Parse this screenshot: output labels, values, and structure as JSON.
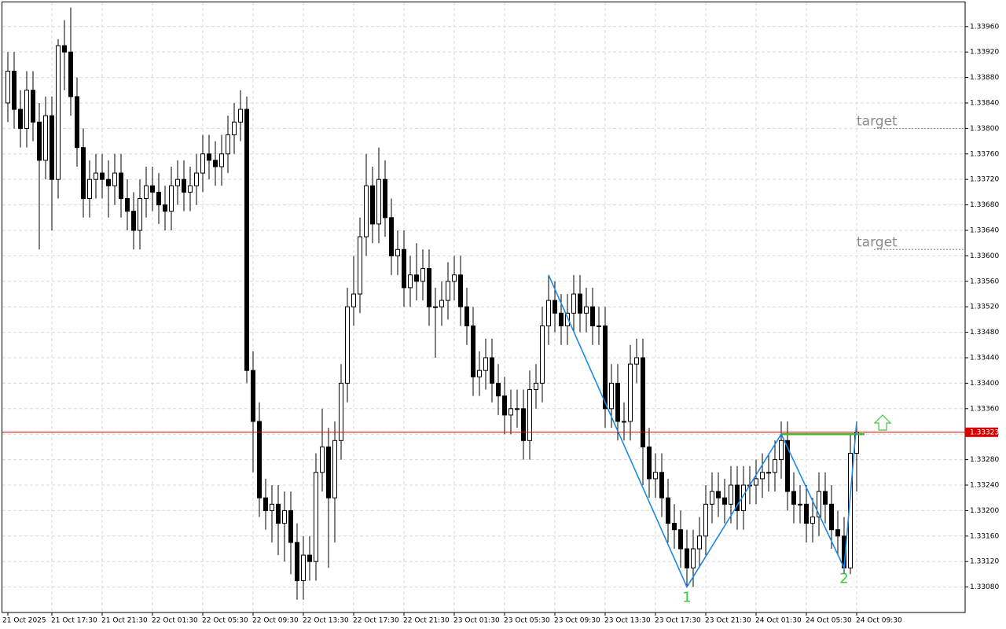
{
  "chart_data": {
    "type": "candlestick",
    "categories": [
      "21 Oct 2025",
      null,
      null,
      null,
      null,
      null,
      null,
      "21 Oct 17:30",
      null,
      null,
      null,
      null,
      null,
      null,
      null,
      "21 Oct 21:30",
      null,
      null,
      null,
      null,
      null,
      null,
      null,
      "22 Oct 01:30",
      null,
      null,
      null,
      null,
      null,
      null,
      null,
      "22 Oct 05:30",
      null,
      null,
      null,
      null,
      null,
      null,
      null,
      "22 Oct 09:30",
      null,
      null,
      null,
      null,
      null,
      null,
      null,
      "22 Oct 13:30",
      null,
      null,
      null,
      null,
      null,
      null,
      null,
      "22 Oct 17:30",
      null,
      null,
      null,
      null,
      null,
      null,
      null,
      "22 Oct 21:30",
      null,
      null,
      null,
      null,
      null,
      null,
      null,
      "23 Oct 01:30",
      null,
      null,
      null,
      null,
      null,
      null,
      null,
      "23 Oct 05:30",
      null,
      null,
      null,
      null,
      null,
      null,
      null,
      "23 Oct 09:30",
      null,
      null,
      null,
      null,
      null,
      null,
      null,
      "23 Oct 13:30",
      null,
      null,
      null,
      null,
      null,
      null,
      null,
      "23 Oct 17:30",
      null,
      null,
      null,
      null,
      null,
      null,
      null,
      "23 Oct 21:30",
      null,
      null,
      null,
      null,
      null,
      null,
      null,
      "24 Oct 01:30",
      null,
      null,
      null,
      null,
      null,
      null,
      null,
      "24 Oct 05:30",
      null,
      null,
      null,
      null,
      null,
      null,
      null,
      "24 Oct 09:30"
    ],
    "ohlc": [
      [
        1.3384,
        1.3392,
        1.3381,
        1.3389
      ],
      [
        1.3389,
        1.3392,
        1.338,
        1.3383
      ],
      [
        1.3383,
        1.3386,
        1.3377,
        1.338
      ],
      [
        1.338,
        1.3389,
        1.3377,
        1.3386
      ],
      [
        1.3386,
        1.3389,
        1.3378,
        1.3381
      ],
      [
        1.3381,
        1.3384,
        1.3361,
        1.3375
      ],
      [
        1.3375,
        1.3385,
        1.3372,
        1.3382
      ],
      [
        1.3382,
        1.3385,
        1.3364,
        1.3372
      ],
      [
        1.3372,
        1.3394,
        1.3369,
        1.3393
      ],
      [
        1.3393,
        1.3397,
        1.3386,
        1.3392
      ],
      [
        1.3392,
        1.3399,
        1.3382,
        1.3385
      ],
      [
        1.3385,
        1.3388,
        1.3374,
        1.3377
      ],
      [
        1.3377,
        1.338,
        1.3366,
        1.3369
      ],
      [
        1.3369,
        1.3375,
        1.3366,
        1.3372
      ],
      [
        1.3372,
        1.3376,
        1.3369,
        1.3373
      ],
      [
        1.3373,
        1.3376,
        1.3369,
        1.3372
      ],
      [
        1.3372,
        1.3375,
        1.3366,
        1.3371
      ],
      [
        1.3371,
        1.3376,
        1.3368,
        1.3373
      ],
      [
        1.3373,
        1.3376,
        1.3366,
        1.3369
      ],
      [
        1.3369,
        1.3372,
        1.3364,
        1.3367
      ],
      [
        1.3367,
        1.337,
        1.3361,
        1.3364
      ],
      [
        1.3364,
        1.3372,
        1.3361,
        1.3369
      ],
      [
        1.3369,
        1.3374,
        1.3366,
        1.3371
      ],
      [
        1.3371,
        1.3374,
        1.3367,
        1.337
      ],
      [
        1.337,
        1.3373,
        1.3365,
        1.3368
      ],
      [
        1.3368,
        1.3371,
        1.3364,
        1.3367
      ],
      [
        1.3367,
        1.3374,
        1.3364,
        1.3371
      ],
      [
        1.3371,
        1.3375,
        1.3368,
        1.3372
      ],
      [
        1.3372,
        1.3375,
        1.3367,
        1.337
      ],
      [
        1.337,
        1.3374,
        1.3367,
        1.3371
      ],
      [
        1.3371,
        1.3376,
        1.3368,
        1.3373
      ],
      [
        1.3373,
        1.3379,
        1.337,
        1.3376
      ],
      [
        1.3376,
        1.3379,
        1.3372,
        1.3375
      ],
      [
        1.3375,
        1.3378,
        1.3371,
        1.3374
      ],
      [
        1.3374,
        1.3379,
        1.3371,
        1.3376
      ],
      [
        1.3376,
        1.3382,
        1.3373,
        1.3379
      ],
      [
        1.3379,
        1.3384,
        1.3376,
        1.3381
      ],
      [
        1.3381,
        1.3386,
        1.3378,
        1.3383
      ],
      [
        1.3383,
        1.3385,
        1.334,
        1.3342
      ],
      [
        1.3342,
        1.3345,
        1.3326,
        1.3334
      ],
      [
        1.3334,
        1.3337,
        1.3319,
        1.3322
      ],
      [
        1.3322,
        1.3325,
        1.3317,
        1.332
      ],
      [
        1.332,
        1.3324,
        1.3315,
        1.3321
      ],
      [
        1.3321,
        1.3324,
        1.3313,
        1.3318
      ],
      [
        1.3318,
        1.3323,
        1.3312,
        1.332
      ],
      [
        1.332,
        1.3323,
        1.331,
        1.3315
      ],
      [
        1.3315,
        1.3318,
        1.3306,
        1.3309
      ],
      [
        1.3309,
        1.3316,
        1.3306,
        1.3313
      ],
      [
        1.3313,
        1.3316,
        1.3309,
        1.3312
      ],
      [
        1.3312,
        1.3329,
        1.3309,
        1.3326
      ],
      [
        1.3326,
        1.3336,
        1.3323,
        1.333
      ],
      [
        1.333,
        1.3333,
        1.3311,
        1.3322
      ],
      [
        1.3322,
        1.3334,
        1.3315,
        1.3331
      ],
      [
        1.3331,
        1.3343,
        1.3328,
        1.334
      ],
      [
        1.334,
        1.3355,
        1.3337,
        1.3352
      ],
      [
        1.3352,
        1.336,
        1.3349,
        1.3354
      ],
      [
        1.3354,
        1.3366,
        1.3351,
        1.3363
      ],
      [
        1.3363,
        1.3376,
        1.336,
        1.3371
      ],
      [
        1.3371,
        1.3374,
        1.3362,
        1.3365
      ],
      [
        1.3365,
        1.3377,
        1.3362,
        1.3372
      ],
      [
        1.3372,
        1.3375,
        1.3363,
        1.3366
      ],
      [
        1.3366,
        1.3369,
        1.3357,
        1.336
      ],
      [
        1.336,
        1.3364,
        1.3357,
        1.3361
      ],
      [
        1.3361,
        1.3364,
        1.3352,
        1.3355
      ],
      [
        1.3355,
        1.336,
        1.3352,
        1.3357
      ],
      [
        1.3357,
        1.3362,
        1.3353,
        1.3356
      ],
      [
        1.3356,
        1.3361,
        1.3353,
        1.3358
      ],
      [
        1.3358,
        1.3361,
        1.3349,
        1.3352
      ],
      [
        1.3352,
        1.3355,
        1.3344,
        1.3352
      ],
      [
        1.3352,
        1.3356,
        1.3349,
        1.3353
      ],
      [
        1.3353,
        1.3359,
        1.335,
        1.3356
      ],
      [
        1.3356,
        1.336,
        1.3353,
        1.3357
      ],
      [
        1.3357,
        1.336,
        1.3349,
        1.3352
      ],
      [
        1.3352,
        1.3355,
        1.3346,
        1.3349
      ],
      [
        1.3349,
        1.3352,
        1.3338,
        1.3341
      ],
      [
        1.3341,
        1.3345,
        1.3338,
        1.3342
      ],
      [
        1.3342,
        1.3347,
        1.3339,
        1.3344
      ],
      [
        1.3344,
        1.3347,
        1.3337,
        1.334
      ],
      [
        1.334,
        1.3343,
        1.3335,
        1.3338
      ],
      [
        1.3338,
        1.3341,
        1.3332,
        1.3335
      ],
      [
        1.3335,
        1.3339,
        1.3332,
        1.3336
      ],
      [
        1.3336,
        1.3339,
        1.3333,
        1.3336
      ],
      [
        1.3336,
        1.3339,
        1.3328,
        1.3331
      ],
      [
        1.3331,
        1.3342,
        1.3328,
        1.3339
      ],
      [
        1.3339,
        1.3343,
        1.3336,
        1.334
      ],
      [
        1.334,
        1.3352,
        1.3337,
        1.3349
      ],
      [
        1.3349,
        1.3357,
        1.3346,
        1.3353
      ],
      [
        1.3353,
        1.3356,
        1.3348,
        1.3351
      ],
      [
        1.3351,
        1.3354,
        1.3346,
        1.3349
      ],
      [
        1.3349,
        1.3354,
        1.3346,
        1.3351
      ],
      [
        1.3351,
        1.3357,
        1.3348,
        1.3354
      ],
      [
        1.3354,
        1.3357,
        1.3348,
        1.3351
      ],
      [
        1.3351,
        1.3355,
        1.3348,
        1.3352
      ],
      [
        1.3352,
        1.3355,
        1.3346,
        1.3349
      ],
      [
        1.3349,
        1.3352,
        1.3346,
        1.3349
      ],
      [
        1.3349,
        1.3352,
        1.3333,
        1.3336
      ],
      [
        1.3336,
        1.3343,
        1.3333,
        1.334
      ],
      [
        1.334,
        1.3343,
        1.3331,
        1.3334
      ],
      [
        1.3334,
        1.3337,
        1.3331,
        1.3334
      ],
      [
        1.3334,
        1.3346,
        1.3331,
        1.3343
      ],
      [
        1.3343,
        1.3347,
        1.334,
        1.3344
      ],
      [
        1.3344,
        1.3347,
        1.3324,
        1.333
      ],
      [
        1.333,
        1.3333,
        1.3322,
        1.3325
      ],
      [
        1.3325,
        1.3329,
        1.3322,
        1.3326
      ],
      [
        1.3326,
        1.3329,
        1.3319,
        1.3322
      ],
      [
        1.3322,
        1.3325,
        1.3315,
        1.3318
      ],
      [
        1.3318,
        1.3321,
        1.3314,
        1.3317
      ],
      [
        1.3317,
        1.332,
        1.3311,
        1.3314
      ],
      [
        1.3314,
        1.3317,
        1.3308,
        1.3311
      ],
      [
        1.3311,
        1.3317,
        1.3308,
        1.3314
      ],
      [
        1.3314,
        1.3319,
        1.3311,
        1.3316
      ],
      [
        1.3316,
        1.3324,
        1.3313,
        1.3321
      ],
      [
        1.3321,
        1.3326,
        1.3318,
        1.3323
      ],
      [
        1.3323,
        1.3326,
        1.3319,
        1.3322
      ],
      [
        1.3322,
        1.3325,
        1.3318,
        1.3321
      ],
      [
        1.3321,
        1.3327,
        1.3318,
        1.3324
      ],
      [
        1.3324,
        1.3327,
        1.3317,
        1.332
      ],
      [
        1.332,
        1.3327,
        1.3317,
        1.3324
      ],
      [
        1.3324,
        1.3327,
        1.3321,
        1.3324
      ],
      [
        1.3324,
        1.3328,
        1.3321,
        1.3325
      ],
      [
        1.3325,
        1.3329,
        1.3322,
        1.3326
      ],
      [
        1.3326,
        1.3329,
        1.3323,
        1.3326
      ],
      [
        1.3326,
        1.3331,
        1.3323,
        1.3328
      ],
      [
        1.3328,
        1.3334,
        1.3325,
        1.3331
      ],
      [
        1.3331,
        1.3334,
        1.332,
        1.3323
      ],
      [
        1.3323,
        1.3326,
        1.3318,
        1.3321
      ],
      [
        1.3321,
        1.3324,
        1.3318,
        1.3321
      ],
      [
        1.3321,
        1.3324,
        1.3315,
        1.3318
      ],
      [
        1.3318,
        1.3322,
        1.3315,
        1.3319
      ],
      [
        1.3319,
        1.3326,
        1.3316,
        1.3323
      ],
      [
        1.3323,
        1.3326,
        1.3318,
        1.3321
      ],
      [
        1.3321,
        1.3324,
        1.3314,
        1.3317
      ],
      [
        1.3317,
        1.332,
        1.3313,
        1.3316
      ],
      [
        1.3316,
        1.3319,
        1.331,
        1.3311
      ],
      [
        1.3311,
        1.3332,
        1.331,
        1.3329
      ],
      [
        1.3329,
        1.3334,
        1.3323,
        1.33323
      ]
    ],
    "ylim": [
      1.3304,
      1.33998
    ],
    "yticks": [
      {
        "value": 1.3308,
        "label": "1.33080"
      },
      {
        "value": 1.3312,
        "label": "1.33120"
      },
      {
        "value": 1.3316,
        "label": "1.33160"
      },
      {
        "value": 1.332,
        "label": "1.33200"
      },
      {
        "value": 1.3324,
        "label": "1.33240"
      },
      {
        "value": 1.3328,
        "label": "1.33280"
      },
      {
        "value": 1.3332,
        "label": "1.33320"
      },
      {
        "value": 1.3336,
        "label": "1.33360"
      },
      {
        "value": 1.334,
        "label": "1.33400"
      },
      {
        "value": 1.3344,
        "label": "1.33440"
      },
      {
        "value": 1.3348,
        "label": "1.33480"
      },
      {
        "value": 1.3352,
        "label": "1.33520"
      },
      {
        "value": 1.3356,
        "label": "1.33560"
      },
      {
        "value": 1.336,
        "label": "1.33600"
      },
      {
        "value": 1.3364,
        "label": "1.33640"
      },
      {
        "value": 1.3368,
        "label": "1.33680"
      },
      {
        "value": 1.3372,
        "label": "1.33720"
      },
      {
        "value": 1.3376,
        "label": "1.33760"
      },
      {
        "value": 1.338,
        "label": "1.33800"
      },
      {
        "value": 1.3384,
        "label": "1.33840"
      },
      {
        "value": 1.3388,
        "label": "1.33880"
      },
      {
        "value": 1.3392,
        "label": "1.33920"
      },
      {
        "value": 1.3396,
        "label": "1.33960"
      }
    ],
    "grid": true,
    "current_price": 1.33323,
    "pattern": {
      "x": [
        86,
        108,
        123,
        133,
        135
      ],
      "y": [
        1.3357,
        1.3308,
        1.3332,
        1.3311,
        1.3334
      ],
      "color": "#1e88e5"
    },
    "wave_labels": [
      "1",
      "2"
    ],
    "neckline": {
      "value": 1.3332,
      "color": "#4cb82c"
    },
    "targets": [
      {
        "label": "target",
        "value": 1.338
      },
      {
        "label": "target",
        "value": 1.3361
      }
    ]
  }
}
